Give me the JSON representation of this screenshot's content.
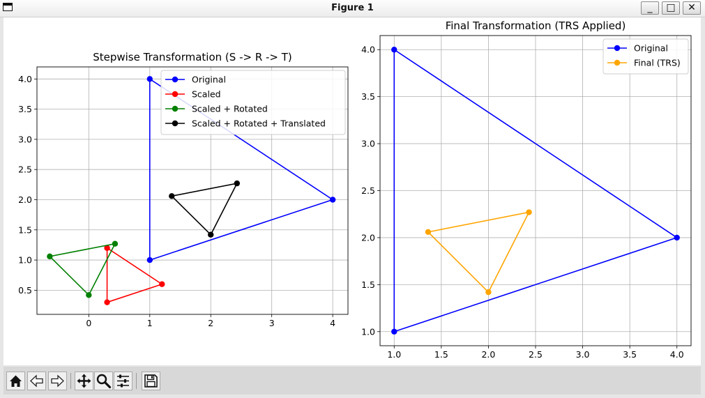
{
  "window": {
    "title": "Figure 1"
  },
  "titlebar_buttons": {
    "minimize": "_",
    "maximize": "□",
    "close": "✕"
  },
  "toolbar": {
    "buttons": [
      "home-icon",
      "back-arrow-icon",
      "forward-arrow-icon",
      "pan-icon",
      "zoom-icon",
      "configure-subplots-icon",
      "save-icon"
    ]
  },
  "chart_data": [
    {
      "type": "line",
      "title": "Stepwise Transformation (S -> R -> T)",
      "xlabel": "",
      "ylabel": "",
      "xlim": [
        -0.85,
        4.25
      ],
      "ylim": [
        0.1,
        4.2
      ],
      "xticks": [
        0,
        1,
        2,
        3,
        4
      ],
      "yticks": [
        0.5,
        1.0,
        1.5,
        2.0,
        2.5,
        3.0,
        3.5,
        4.0
      ],
      "xtick_labels": [
        "0",
        "1",
        "2",
        "3",
        "4"
      ],
      "ytick_labels": [
        "0.5",
        "1.0",
        "1.5",
        "2.0",
        "2.5",
        "3.0",
        "3.5",
        "4.0"
      ],
      "grid": true,
      "legend": "upper-right",
      "series": [
        {
          "name": "Original",
          "color": "#0000ff",
          "x": [
            1,
            4,
            1,
            1
          ],
          "y": [
            1,
            2,
            4,
            1
          ]
        },
        {
          "name": "Scaled",
          "color": "#ff0000",
          "x": [
            0.3,
            1.2,
            0.3,
            0.3
          ],
          "y": [
            0.3,
            0.6,
            1.2,
            0.3
          ]
        },
        {
          "name": "Scaled + Rotated",
          "color": "#008000",
          "x": [
            0.0,
            0.43,
            -0.64,
            0.0
          ],
          "y": [
            0.42,
            1.27,
            1.06,
            0.42
          ]
        },
        {
          "name": "Scaled + Rotated + Translated",
          "color": "#000000",
          "x": [
            2.0,
            2.43,
            1.36,
            2.0
          ],
          "y": [
            1.42,
            2.27,
            2.06,
            1.42
          ]
        }
      ]
    },
    {
      "type": "line",
      "title": "Final Transformation (TRS Applied)",
      "xlabel": "",
      "ylabel": "",
      "xlim": [
        0.85,
        4.15
      ],
      "ylim": [
        0.85,
        4.15
      ],
      "xticks": [
        1.0,
        1.5,
        2.0,
        2.5,
        3.0,
        3.5,
        4.0
      ],
      "yticks": [
        1.0,
        1.5,
        2.0,
        2.5,
        3.0,
        3.5,
        4.0
      ],
      "xtick_labels": [
        "1.0",
        "1.5",
        "2.0",
        "2.5",
        "3.0",
        "3.5",
        "4.0"
      ],
      "ytick_labels": [
        "1.0",
        "1.5",
        "2.0",
        "2.5",
        "3.0",
        "3.5",
        "4.0"
      ],
      "grid": true,
      "legend": "upper-right",
      "series": [
        {
          "name": "Original",
          "color": "#0000ff",
          "x": [
            1,
            4,
            1,
            1
          ],
          "y": [
            1,
            2,
            4,
            1
          ]
        },
        {
          "name": "Final (TRS)",
          "color": "#ffa500",
          "x": [
            2.0,
            2.43,
            1.36,
            2.0
          ],
          "y": [
            1.42,
            2.27,
            2.06,
            1.42
          ]
        }
      ]
    }
  ]
}
